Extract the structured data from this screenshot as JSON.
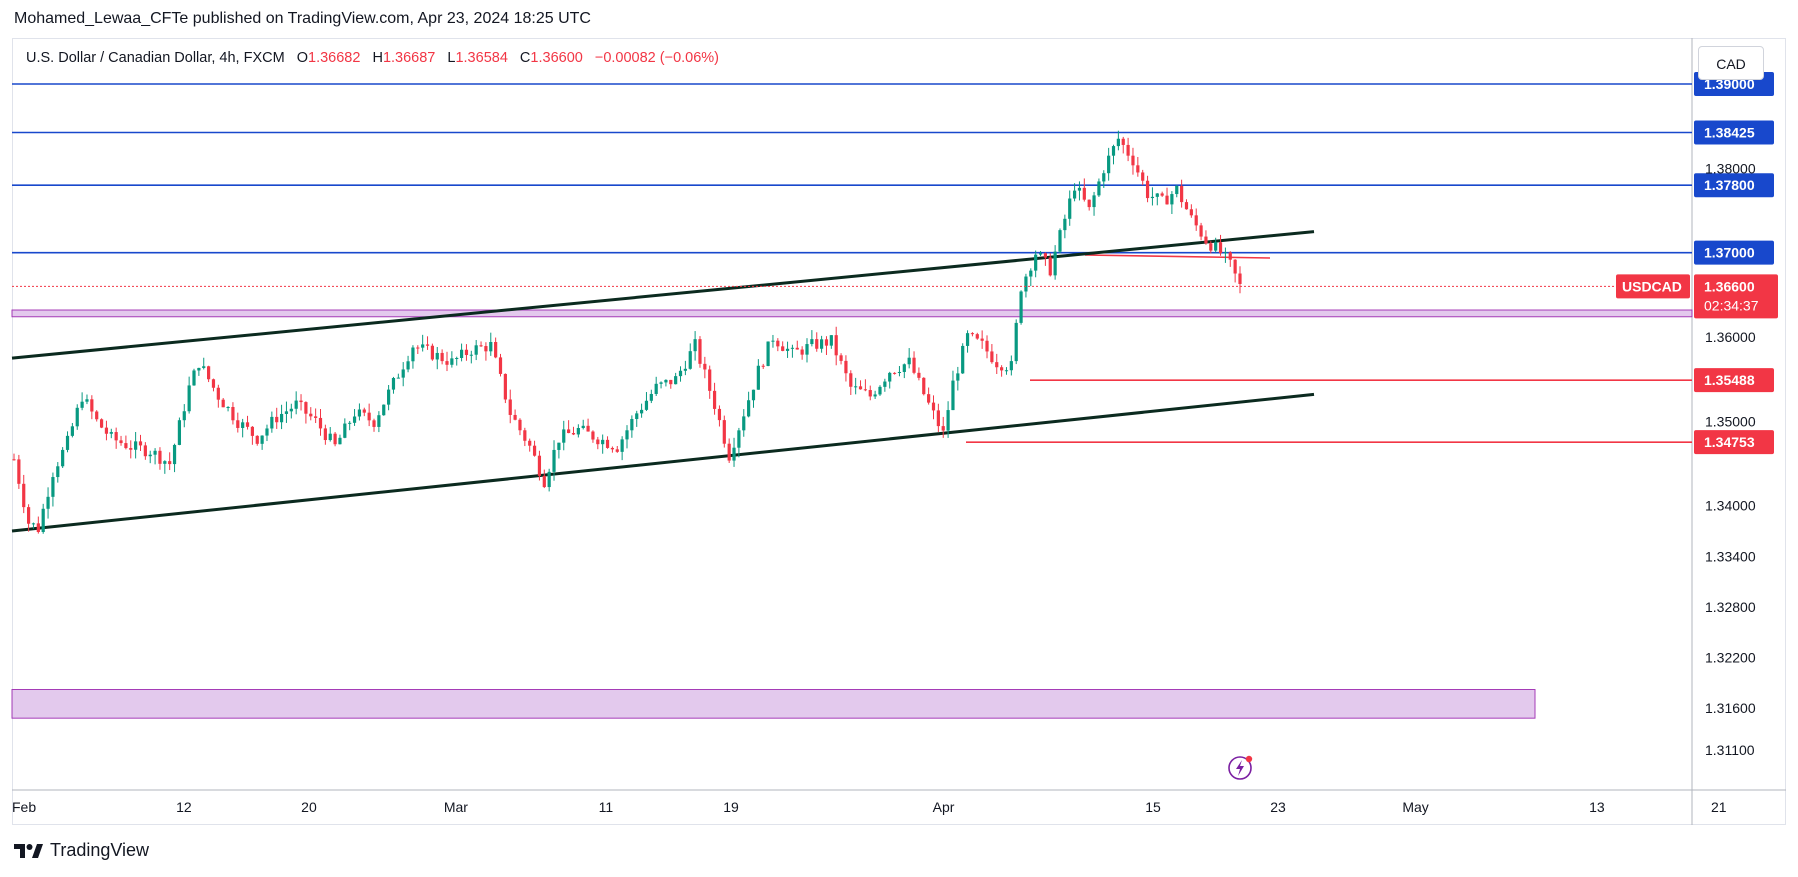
{
  "header": {
    "publisher_line": "Mohamed_Lewaa_CFTe published on TradingView.com, Apr 23, 2024 18:25 UTC"
  },
  "legend": {
    "symbol": "U.S. Dollar / Canadian Dollar, 4h, FXCM",
    "open_label": "O",
    "open": "1.36682",
    "high_label": "H",
    "high": "1.36687",
    "low_label": "L",
    "low": "1.36584",
    "close_label": "C",
    "close": "1.36600",
    "change": "−0.00082 (−0.06%)"
  },
  "currency_button": "CAD",
  "footer": {
    "brand": "TradingView",
    "logo_icon": "tradingview-logo-icon"
  },
  "colors": {
    "up": "#089981",
    "down": "#f23645",
    "hline_blue": "#1848cc",
    "hline_red": "#f23645",
    "trendline": "#0b2a1f",
    "zone_fill": "#e1c4ec",
    "zone_border": "#9c27b0"
  },
  "chart_data": {
    "type": "candlestick",
    "symbol": "USDCAD",
    "timeframe": "4h",
    "ylim": [
      1.3085,
      1.3935
    ],
    "y_ticks": [
      "1.38000",
      "1.36000",
      "1.35000",
      "1.34000",
      "1.33400",
      "1.32800",
      "1.32200",
      "1.31600",
      "1.31100"
    ],
    "x_ticks": [
      "Feb",
      "12",
      "20",
      "Mar",
      "11",
      "19",
      "Apr",
      "15",
      "23",
      "May",
      "13",
      "21"
    ],
    "last_price": {
      "symbol_tag": "USDCAD",
      "value": "1.36600",
      "countdown": "02:34:37"
    },
    "horizontal_levels": [
      {
        "value": "1.39000",
        "color": "blue"
      },
      {
        "value": "1.38425",
        "color": "blue"
      },
      {
        "value": "1.37800",
        "color": "blue"
      },
      {
        "value": "1.37000",
        "color": "blue"
      },
      {
        "value": "1.35488",
        "color": "red"
      },
      {
        "value": "1.34753",
        "color": "red"
      }
    ],
    "zones": [
      {
        "from": 1.3624,
        "to": 1.3632
      },
      {
        "from": 1.3148,
        "to": 1.3182
      }
    ],
    "trendlines": [
      {
        "name": "upper",
        "from": [
          "Jan 31",
          1.3575
        ],
        "to": [
          "Apr 26",
          1.3725
        ]
      },
      {
        "name": "lower",
        "from": [
          "Jan 31",
          1.337
        ],
        "to": [
          "Apr 26",
          1.3532
        ]
      }
    ],
    "price_path": [
      {
        "x": 0,
        "y": 1.3455
      },
      {
        "x": 3,
        "y": 1.338
      },
      {
        "x": 5,
        "y": 1.3373
      },
      {
        "x": 8,
        "y": 1.344
      },
      {
        "x": 11,
        "y": 1.3475
      },
      {
        "x": 14,
        "y": 1.353
      },
      {
        "x": 17,
        "y": 1.35
      },
      {
        "x": 20,
        "y": 1.348
      },
      {
        "x": 24,
        "y": 1.347
      },
      {
        "x": 28,
        "y": 1.3465
      },
      {
        "x": 32,
        "y": 1.345
      },
      {
        "x": 36,
        "y": 1.354
      },
      {
        "x": 38,
        "y": 1.357
      },
      {
        "x": 42,
        "y": 1.353
      },
      {
        "x": 46,
        "y": 1.35
      },
      {
        "x": 50,
        "y": 1.348
      },
      {
        "x": 54,
        "y": 1.3505
      },
      {
        "x": 58,
        "y": 1.352
      },
      {
        "x": 62,
        "y": 1.35
      },
      {
        "x": 66,
        "y": 1.347
      },
      {
        "x": 70,
        "y": 1.351
      },
      {
        "x": 74,
        "y": 1.35
      },
      {
        "x": 78,
        "y": 1.3545
      },
      {
        "x": 82,
        "y": 1.359
      },
      {
        "x": 86,
        "y": 1.358
      },
      {
        "x": 90,
        "y": 1.357
      },
      {
        "x": 94,
        "y": 1.3585
      },
      {
        "x": 98,
        "y": 1.359
      },
      {
        "x": 102,
        "y": 1.351
      },
      {
        "x": 106,
        "y": 1.347
      },
      {
        "x": 109,
        "y": 1.343
      },
      {
        "x": 112,
        "y": 1.348
      },
      {
        "x": 116,
        "y": 1.349
      },
      {
        "x": 120,
        "y": 1.348
      },
      {
        "x": 124,
        "y": 1.347
      },
      {
        "x": 128,
        "y": 1.351
      },
      {
        "x": 132,
        "y": 1.354
      },
      {
        "x": 136,
        "y": 1.355
      },
      {
        "x": 140,
        "y": 1.359
      },
      {
        "x": 144,
        "y": 1.352
      },
      {
        "x": 147,
        "y": 1.346
      },
      {
        "x": 150,
        "y": 1.351
      },
      {
        "x": 153,
        "y": 1.356
      },
      {
        "x": 156,
        "y": 1.36
      },
      {
        "x": 160,
        "y": 1.358
      },
      {
        "x": 164,
        "y": 1.359
      },
      {
        "x": 168,
        "y": 1.3595
      },
      {
        "x": 172,
        "y": 1.354
      },
      {
        "x": 176,
        "y": 1.353
      },
      {
        "x": 180,
        "y": 1.356
      },
      {
        "x": 184,
        "y": 1.357
      },
      {
        "x": 188,
        "y": 1.352
      },
      {
        "x": 191,
        "y": 1.3485
      },
      {
        "x": 193,
        "y": 1.3545
      },
      {
        "x": 196,
        "y": 1.36
      },
      {
        "x": 199,
        "y": 1.359
      },
      {
        "x": 202,
        "y": 1.357
      },
      {
        "x": 205,
        "y": 1.3565
      },
      {
        "x": 207,
        "y": 1.366
      },
      {
        "x": 210,
        "y": 1.37
      },
      {
        "x": 213,
        "y": 1.368
      },
      {
        "x": 216,
        "y": 1.374
      },
      {
        "x": 218,
        "y": 1.378
      },
      {
        "x": 221,
        "y": 1.375
      },
      {
        "x": 224,
        "y": 1.38
      },
      {
        "x": 227,
        "y": 1.3835
      },
      {
        "x": 230,
        "y": 1.381
      },
      {
        "x": 233,
        "y": 1.377
      },
      {
        "x": 236,
        "y": 1.376
      },
      {
        "x": 239,
        "y": 1.3775
      },
      {
        "x": 242,
        "y": 1.374
      },
      {
        "x": 245,
        "y": 1.3715
      },
      {
        "x": 248,
        "y": 1.37
      },
      {
        "x": 250,
        "y": 1.3685
      },
      {
        "x": 252,
        "y": 1.366
      }
    ]
  }
}
